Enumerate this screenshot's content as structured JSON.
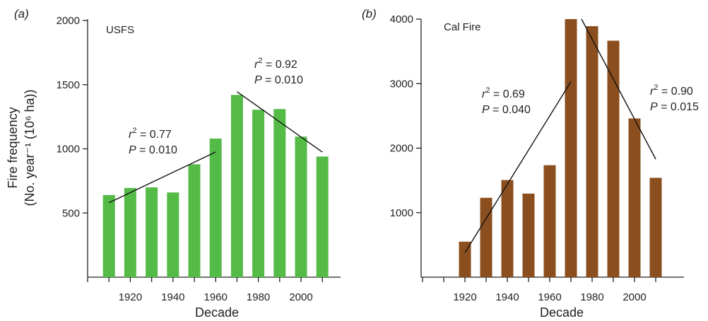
{
  "figure": {
    "ylabel_line1": "Fire frequency",
    "ylabel_line2": "(No. year⁻¹ (10⁶ ha))"
  },
  "chart_data": [
    {
      "type": "bar",
      "panel_label": "(a)",
      "tag": "USFS",
      "color": "#55bb47",
      "categories": [
        "1910",
        "1920",
        "1930",
        "1940",
        "1950",
        "1960",
        "1970",
        "1980",
        "1990",
        "2000",
        "2010"
      ],
      "values": [
        640,
        695,
        700,
        660,
        880,
        1080,
        1420,
        1305,
        1310,
        1095,
        940
      ],
      "xlabel": "Decade",
      "xticks": [
        "1920",
        "1940",
        "1960",
        "1980",
        "2000"
      ],
      "ylim": [
        0,
        2000
      ],
      "yticks": [
        "500",
        "1000",
        "1500",
        "2000"
      ],
      "trends": [
        {
          "x": [
            1910,
            1960
          ],
          "y": [
            580,
            975
          ],
          "r2": "0.77",
          "p": "0.010"
        },
        {
          "x": [
            1970,
            2010
          ],
          "y": [
            1445,
            975
          ],
          "r2": "0.92",
          "p": "0.010"
        }
      ]
    },
    {
      "type": "bar",
      "panel_label": "(b)",
      "tag": "Cal Fire",
      "color": "#8b4f1f",
      "categories": [
        "1920",
        "1930",
        "1940",
        "1950",
        "1960",
        "1970",
        "1980",
        "1990",
        "2000",
        "2010"
      ],
      "values": [
        550,
        1230,
        1505,
        1295,
        1735,
        4000,
        3890,
        3665,
        2460,
        1540
      ],
      "xlabel": "Decade",
      "xticks": [
        "1920",
        "1940",
        "1960",
        "1980",
        "2000"
      ],
      "ylim": [
        0,
        4000
      ],
      "yticks": [
        "1000",
        "2000",
        "3000",
        "4000"
      ],
      "trends": [
        {
          "x": [
            1920,
            1970
          ],
          "y": [
            380,
            3030
          ],
          "r2": "0.69",
          "p": "0.040"
        },
        {
          "x": [
            1975,
            2010
          ],
          "y": [
            4000,
            1830
          ],
          "r2": "0.90",
          "p": "0.015"
        }
      ]
    }
  ]
}
